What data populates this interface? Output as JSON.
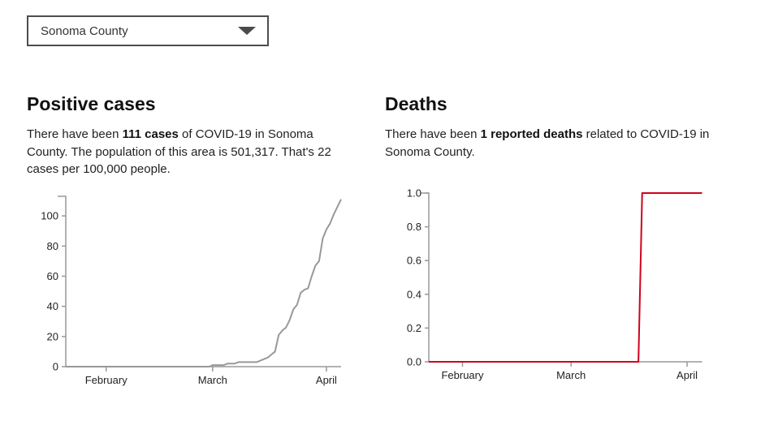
{
  "selector": {
    "value": "Sonoma County",
    "chevron_icon": "chevron-down"
  },
  "sections": {
    "cases": {
      "title": "Positive cases",
      "text_prefix": "There have been ",
      "text_bold": "111 cases",
      "text_suffix": " of COVID-19 in Sonoma County. The population of this area is 501,317. That's 22 cases per 100,000 people."
    },
    "deaths": {
      "title": "Deaths",
      "text_prefix": "There have been ",
      "text_bold": "1 reported deaths",
      "text_suffix": " related to COVID-19 in Sonoma County."
    }
  },
  "colors": {
    "cases_line": "#999999",
    "deaths_line": "#d0021b",
    "axis": "#999999",
    "tick_text": "#222222"
  },
  "chart_data": [
    {
      "type": "line",
      "title": "Positive cases in Sonoma County (cumulative)",
      "color": "#999999",
      "grid": false,
      "legend": "none",
      "ylim": [
        0,
        113
      ],
      "x_range": [
        "2020-01-21",
        "2020-04-05"
      ],
      "y_ticks": [
        {
          "value": 0,
          "label": "0"
        },
        {
          "value": 20,
          "label": "20"
        },
        {
          "value": 40,
          "label": "40"
        },
        {
          "value": 60,
          "label": "60"
        },
        {
          "value": 80,
          "label": "80"
        },
        {
          "value": 100,
          "label": "100"
        }
      ],
      "x_ticks": [
        {
          "date": "2020-02-01",
          "label": "February"
        },
        {
          "date": "2020-03-01",
          "label": "March"
        },
        {
          "date": "2020-04-01",
          "label": "April"
        }
      ],
      "points": [
        {
          "date": "2020-01-21",
          "value": 0
        },
        {
          "date": "2020-02-01",
          "value": 0
        },
        {
          "date": "2020-02-15",
          "value": 0
        },
        {
          "date": "2020-02-29",
          "value": 0
        },
        {
          "date": "2020-03-01",
          "value": 1
        },
        {
          "date": "2020-03-02",
          "value": 1
        },
        {
          "date": "2020-03-03",
          "value": 1
        },
        {
          "date": "2020-03-04",
          "value": 1
        },
        {
          "date": "2020-03-05",
          "value": 2
        },
        {
          "date": "2020-03-06",
          "value": 2
        },
        {
          "date": "2020-03-07",
          "value": 2
        },
        {
          "date": "2020-03-08",
          "value": 3
        },
        {
          "date": "2020-03-09",
          "value": 3
        },
        {
          "date": "2020-03-10",
          "value": 3
        },
        {
          "date": "2020-03-11",
          "value": 3
        },
        {
          "date": "2020-03-12",
          "value": 3
        },
        {
          "date": "2020-03-13",
          "value": 3
        },
        {
          "date": "2020-03-14",
          "value": 4
        },
        {
          "date": "2020-03-15",
          "value": 5
        },
        {
          "date": "2020-03-16",
          "value": 6
        },
        {
          "date": "2020-03-17",
          "value": 8
        },
        {
          "date": "2020-03-18",
          "value": 10
        },
        {
          "date": "2020-03-19",
          "value": 21
        },
        {
          "date": "2020-03-20",
          "value": 24
        },
        {
          "date": "2020-03-21",
          "value": 26
        },
        {
          "date": "2020-03-22",
          "value": 31
        },
        {
          "date": "2020-03-23",
          "value": 38
        },
        {
          "date": "2020-03-24",
          "value": 41
        },
        {
          "date": "2020-03-25",
          "value": 49
        },
        {
          "date": "2020-03-26",
          "value": 51
        },
        {
          "date": "2020-03-27",
          "value": 52
        },
        {
          "date": "2020-03-28",
          "value": 60
        },
        {
          "date": "2020-03-29",
          "value": 67
        },
        {
          "date": "2020-03-30",
          "value": 70
        },
        {
          "date": "2020-03-31",
          "value": 85
        },
        {
          "date": "2020-04-01",
          "value": 91
        },
        {
          "date": "2020-04-02",
          "value": 95
        },
        {
          "date": "2020-04-03",
          "value": 101
        },
        {
          "date": "2020-04-04",
          "value": 106
        },
        {
          "date": "2020-04-05",
          "value": 111
        }
      ]
    },
    {
      "type": "line",
      "title": "Deaths in Sonoma County (cumulative)",
      "color": "#d0021b",
      "grid": false,
      "legend": "none",
      "ylim": [
        0,
        1
      ],
      "x_range": [
        "2020-01-23",
        "2020-04-05"
      ],
      "y_ticks": [
        {
          "value": 0,
          "label": "0.0"
        },
        {
          "value": 0.2,
          "label": "0.2"
        },
        {
          "value": 0.4,
          "label": "0.4"
        },
        {
          "value": 0.6,
          "label": "0.6"
        },
        {
          "value": 0.8,
          "label": "0.8"
        },
        {
          "value": 1,
          "label": "1.0"
        }
      ],
      "x_ticks": [
        {
          "date": "2020-02-01",
          "label": "February"
        },
        {
          "date": "2020-03-01",
          "label": "March"
        },
        {
          "date": "2020-04-01",
          "label": "April"
        }
      ],
      "points": [
        {
          "date": "2020-01-23",
          "value": 0
        },
        {
          "date": "2020-02-01",
          "value": 0
        },
        {
          "date": "2020-03-01",
          "value": 0
        },
        {
          "date": "2020-03-19",
          "value": 0
        },
        {
          "date": "2020-03-20",
          "value": 1
        },
        {
          "date": "2020-04-01",
          "value": 1
        },
        {
          "date": "2020-04-05",
          "value": 1
        }
      ]
    }
  ]
}
